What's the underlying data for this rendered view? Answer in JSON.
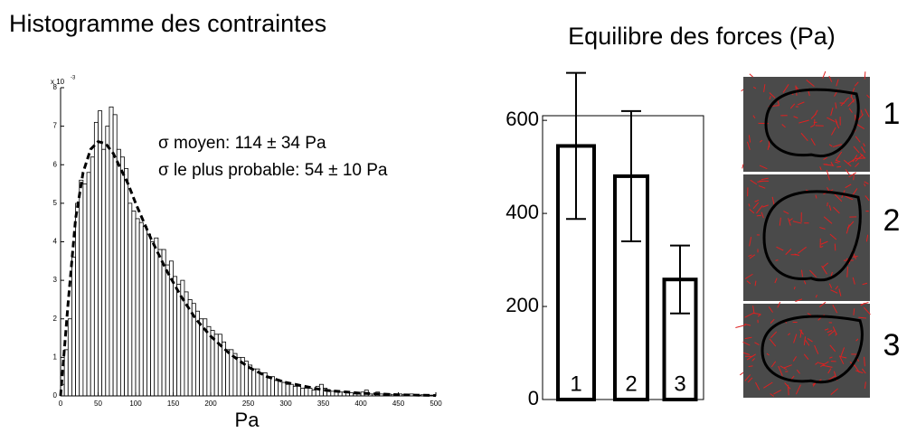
{
  "chart_data": [
    {
      "type": "histogram",
      "title": "Histogramme des contraintes",
      "annotations": [
        "σ moyen: 114 ± 34 Pa",
        "σ le plus probable: 54 ± 10 Pa"
      ],
      "xlabel": "Pa",
      "y_multiplier": {
        "base": "x 10",
        "exponent": "-3"
      },
      "bins": [
        0,
        5,
        10,
        15,
        20,
        25,
        30,
        35,
        40,
        45,
        50,
        55,
        60,
        65,
        70,
        75,
        80,
        85,
        90,
        95,
        100,
        105,
        110,
        115,
        120,
        125,
        130,
        135,
        140,
        145,
        150,
        155,
        160,
        165,
        170,
        175,
        180,
        185,
        190,
        195,
        200,
        205,
        210,
        215,
        220,
        225,
        230,
        235,
        240,
        245,
        250,
        255,
        260,
        265,
        270,
        275,
        280,
        285,
        290,
        295,
        300,
        305,
        310,
        315,
        320,
        325,
        330,
        335,
        340,
        345,
        350,
        355,
        360,
        365,
        370,
        375,
        380,
        385,
        390,
        395,
        400,
        405,
        410,
        415,
        420,
        425,
        430,
        435,
        440,
        445,
        450,
        455,
        460,
        465,
        470,
        475,
        480,
        485,
        490,
        495,
        500
      ],
      "values": [
        0.3,
        1.2,
        2.0,
        3.6,
        5.0,
        5.6,
        5.5,
        5.8,
        6.2,
        7.1,
        7.4,
        6.4,
        7.0,
        7.5,
        7.3,
        6.4,
        6.2,
        5.9,
        5.0,
        4.8,
        4.6,
        4.5,
        4.4,
        4.2,
        4.0,
        4.1,
        3.8,
        3.8,
        3.4,
        3.5,
        3.1,
        2.9,
        3.0,
        2.7,
        2.5,
        2.4,
        2.2,
        2.0,
        2.0,
        1.8,
        1.7,
        1.6,
        1.6,
        1.4,
        1.2,
        1.2,
        1.1,
        1.0,
        1.0,
        0.9,
        0.8,
        0.7,
        0.7,
        0.6,
        0.6,
        0.5,
        0.5,
        0.4,
        0.4,
        0.35,
        0.3,
        0.3,
        0.25,
        0.25,
        0.2,
        0.2,
        0.2,
        0.15,
        0.25,
        0.3,
        0.2,
        0.15,
        0.12,
        0.1,
        0.1,
        0.1,
        0.08,
        0.08,
        0.05,
        0.05,
        0.1,
        0.15,
        0.05,
        0.05,
        0.1,
        0.05,
        0.05,
        0.05,
        0.03,
        0.03,
        0.05,
        0.03,
        0.03,
        0.05,
        0.02,
        0.02,
        0.03,
        0.02,
        0.02,
        0.02
      ],
      "color": "#ffffff",
      "fit": {
        "x": [
          0,
          10,
          20,
          30,
          40,
          50,
          60,
          70,
          80,
          90,
          100,
          120,
          140,
          160,
          180,
          200,
          225,
          250,
          275,
          300,
          350,
          400,
          450,
          500
        ],
        "values": [
          0,
          2.4,
          4.6,
          5.8,
          6.4,
          6.6,
          6.55,
          6.3,
          5.9,
          5.5,
          5.0,
          4.1,
          3.3,
          2.6,
          2.0,
          1.55,
          1.1,
          0.75,
          0.5,
          0.35,
          0.15,
          0.07,
          0.03,
          0.01
        ],
        "color": "#000000"
      },
      "xlim": [
        0,
        500
      ],
      "xticks": [
        0,
        50,
        100,
        150,
        200,
        250,
        300,
        350,
        400,
        450,
        500
      ],
      "ylim": [
        0,
        8
      ],
      "yticks": [
        0,
        1,
        2,
        3,
        4,
        5,
        6,
        7,
        8
      ]
    },
    {
      "type": "bar",
      "title": "Equilibre des forces (Pa)",
      "categories": [
        "1",
        "2",
        "3"
      ],
      "values": [
        545,
        480,
        258
      ],
      "errors": [
        157,
        140,
        73
      ],
      "color": "#ffffff",
      "ylim": [
        0,
        610
      ],
      "yticks": [
        0,
        200,
        400,
        600
      ]
    }
  ],
  "images": {
    "labels": [
      "1",
      "2",
      "3"
    ]
  }
}
